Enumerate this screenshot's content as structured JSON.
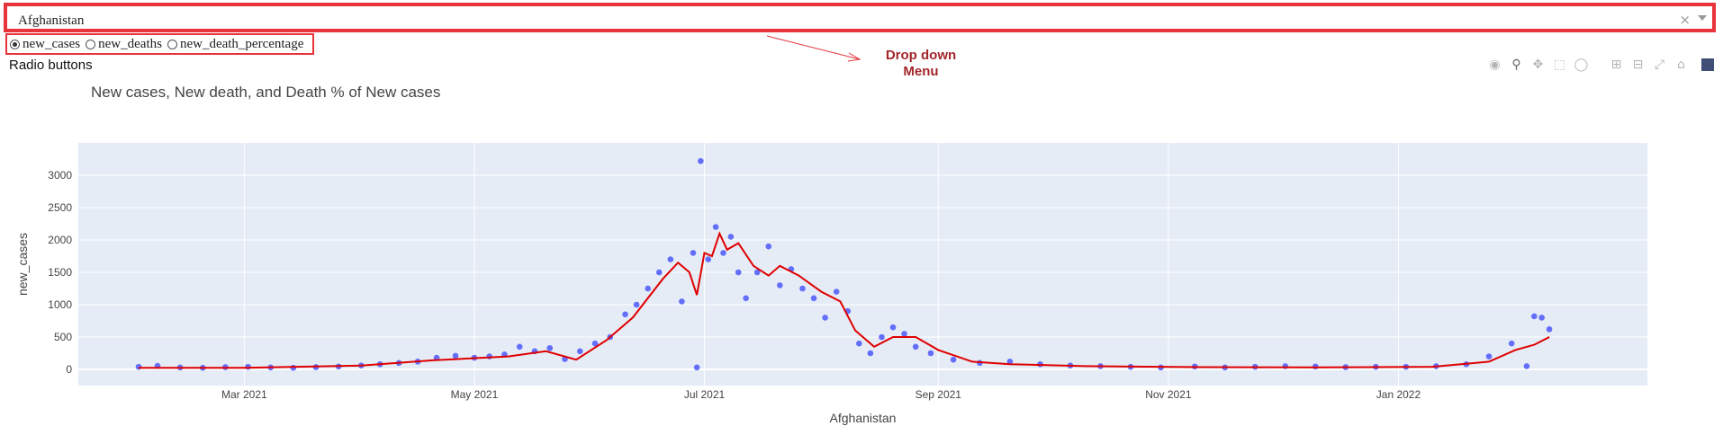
{
  "dropdown": {
    "value": "Afghanistan",
    "clear": "×"
  },
  "radio": {
    "options": [
      "new_cases",
      "new_deaths",
      "new_death_percentage"
    ],
    "selected": "new_cases",
    "caption": "Radio buttons"
  },
  "annotation": {
    "line1": "Drop down",
    "line2": "Menu",
    "color": "#a3262b"
  },
  "modebar": {
    "icons": [
      "camera-icon",
      "zoom-icon",
      "pan-icon",
      "box-select-icon",
      "lasso-icon",
      "zoom-in-icon",
      "zoom-out-icon",
      "autoscale-icon",
      "reset-axes-icon",
      "plotly-logo-icon"
    ]
  },
  "chart_data": {
    "type": "scatter",
    "title": "New cases, New death, and Death % of New cases",
    "xlabel": "Afghanistan",
    "ylabel": "new_cases",
    "x_ticks": [
      "Mar 2021",
      "May 2021",
      "Jul 2021",
      "Sep 2021",
      "Nov 2021",
      "Jan 2022"
    ],
    "y_ticks": [
      0,
      500,
      1000,
      1500,
      2000,
      2500,
      3000
    ],
    "xlim": [
      "2021-01-16",
      "2022-03-08"
    ],
    "ylim": [
      -250,
      3500
    ],
    "grid": true,
    "colors": {
      "points": "#636efa",
      "line": "#e00000",
      "plot_bg": "#e5ecf6"
    },
    "series": [
      {
        "kind": "markers",
        "points": [
          [
            "2021-02-01",
            40
          ],
          [
            "2021-02-06",
            55
          ],
          [
            "2021-02-12",
            30
          ],
          [
            "2021-02-18",
            25
          ],
          [
            "2021-02-24",
            35
          ],
          [
            "2021-03-02",
            40
          ],
          [
            "2021-03-08",
            30
          ],
          [
            "2021-03-14",
            25
          ],
          [
            "2021-03-20",
            35
          ],
          [
            "2021-03-26",
            45
          ],
          [
            "2021-04-01",
            60
          ],
          [
            "2021-04-06",
            80
          ],
          [
            "2021-04-11",
            100
          ],
          [
            "2021-04-16",
            120
          ],
          [
            "2021-04-21",
            180
          ],
          [
            "2021-04-26",
            210
          ],
          [
            "2021-05-01",
            180
          ],
          [
            "2021-05-05",
            200
          ],
          [
            "2021-05-09",
            230
          ],
          [
            "2021-05-13",
            350
          ],
          [
            "2021-05-17",
            280
          ],
          [
            "2021-05-21",
            330
          ],
          [
            "2021-05-25",
            160
          ],
          [
            "2021-05-29",
            280
          ],
          [
            "2021-06-02",
            400
          ],
          [
            "2021-06-06",
            500
          ],
          [
            "2021-06-10",
            850
          ],
          [
            "2021-06-13",
            1000
          ],
          [
            "2021-06-16",
            1250
          ],
          [
            "2021-06-19",
            1500
          ],
          [
            "2021-06-22",
            1700
          ],
          [
            "2021-06-25",
            1050
          ],
          [
            "2021-06-28",
            1800
          ],
          [
            "2021-06-29",
            30
          ],
          [
            "2021-06-30",
            3220
          ],
          [
            "2021-07-02",
            1700
          ],
          [
            "2021-07-04",
            2200
          ],
          [
            "2021-07-06",
            1800
          ],
          [
            "2021-07-08",
            2050
          ],
          [
            "2021-07-10",
            1500
          ],
          [
            "2021-07-12",
            1100
          ],
          [
            "2021-07-15",
            1500
          ],
          [
            "2021-07-18",
            1900
          ],
          [
            "2021-07-21",
            1300
          ],
          [
            "2021-07-24",
            1550
          ],
          [
            "2021-07-27",
            1250
          ],
          [
            "2021-07-30",
            1100
          ],
          [
            "2021-08-02",
            800
          ],
          [
            "2021-08-05",
            1200
          ],
          [
            "2021-08-08",
            900
          ],
          [
            "2021-08-11",
            400
          ],
          [
            "2021-08-14",
            250
          ],
          [
            "2021-08-17",
            500
          ],
          [
            "2021-08-20",
            650
          ],
          [
            "2021-08-23",
            550
          ],
          [
            "2021-08-26",
            350
          ],
          [
            "2021-08-30",
            250
          ],
          [
            "2021-09-05",
            150
          ],
          [
            "2021-09-12",
            100
          ],
          [
            "2021-09-20",
            120
          ],
          [
            "2021-09-28",
            80
          ],
          [
            "2021-10-06",
            60
          ],
          [
            "2021-10-14",
            50
          ],
          [
            "2021-10-22",
            40
          ],
          [
            "2021-10-30",
            30
          ],
          [
            "2021-11-08",
            45
          ],
          [
            "2021-11-16",
            30
          ],
          [
            "2021-11-24",
            40
          ],
          [
            "2021-12-02",
            50
          ],
          [
            "2021-12-10",
            45
          ],
          [
            "2021-12-18",
            35
          ],
          [
            "2021-12-26",
            40
          ],
          [
            "2022-01-03",
            40
          ],
          [
            "2022-01-11",
            50
          ],
          [
            "2022-01-19",
            80
          ],
          [
            "2022-01-25",
            200
          ],
          [
            "2022-01-31",
            400
          ],
          [
            "2022-02-04",
            50
          ],
          [
            "2022-02-06",
            820
          ],
          [
            "2022-02-08",
            800
          ],
          [
            "2022-02-10",
            620
          ]
        ]
      },
      {
        "kind": "line",
        "points": [
          [
            "2021-02-01",
            25
          ],
          [
            "2021-03-01",
            25
          ],
          [
            "2021-04-01",
            60
          ],
          [
            "2021-04-20",
            140
          ],
          [
            "2021-05-10",
            200
          ],
          [
            "2021-05-20",
            280
          ],
          [
            "2021-05-28",
            150
          ],
          [
            "2021-06-05",
            450
          ],
          [
            "2021-06-12",
            800
          ],
          [
            "2021-06-20",
            1400
          ],
          [
            "2021-06-24",
            1650
          ],
          [
            "2021-06-27",
            1500
          ],
          [
            "2021-06-29",
            1150
          ],
          [
            "2021-07-01",
            1800
          ],
          [
            "2021-07-03",
            1750
          ],
          [
            "2021-07-05",
            2100
          ],
          [
            "2021-07-07",
            1850
          ],
          [
            "2021-07-10",
            1950
          ],
          [
            "2021-07-14",
            1600
          ],
          [
            "2021-07-18",
            1450
          ],
          [
            "2021-07-21",
            1600
          ],
          [
            "2021-07-26",
            1450
          ],
          [
            "2021-08-01",
            1200
          ],
          [
            "2021-08-06",
            1050
          ],
          [
            "2021-08-10",
            600
          ],
          [
            "2021-08-15",
            350
          ],
          [
            "2021-08-20",
            500
          ],
          [
            "2021-08-26",
            500
          ],
          [
            "2021-09-01",
            300
          ],
          [
            "2021-09-10",
            120
          ],
          [
            "2021-09-20",
            80
          ],
          [
            "2021-10-10",
            50
          ],
          [
            "2021-11-10",
            35
          ],
          [
            "2021-12-10",
            30
          ],
          [
            "2022-01-10",
            40
          ],
          [
            "2022-01-25",
            120
          ],
          [
            "2022-02-01",
            300
          ],
          [
            "2022-02-06",
            380
          ],
          [
            "2022-02-10",
            500
          ]
        ]
      }
    ]
  }
}
